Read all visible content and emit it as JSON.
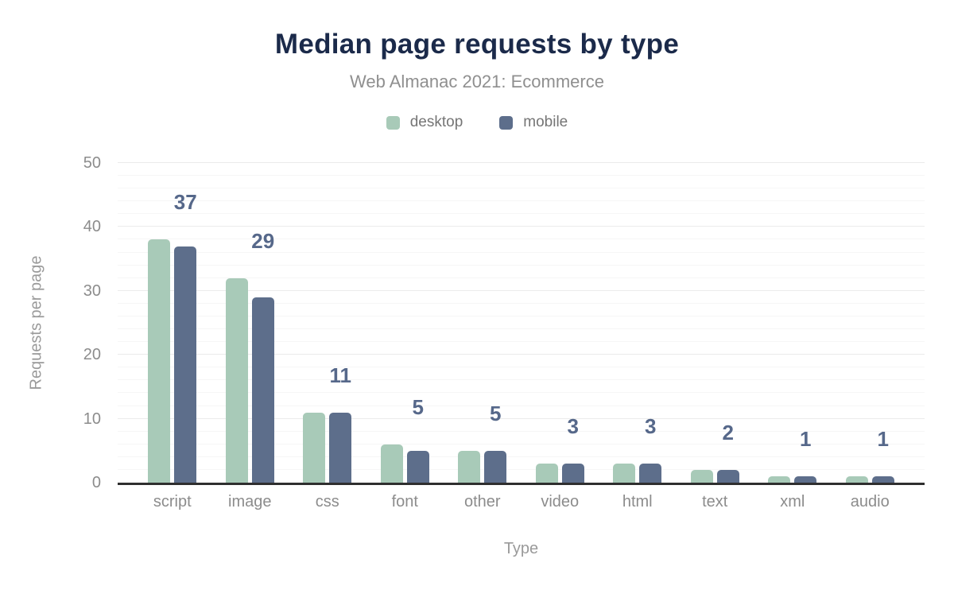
{
  "header": {
    "title": "Median page requests by type",
    "subtitle": "Web Almanac 2021: Ecommerce"
  },
  "legend": [
    {
      "label": "desktop",
      "color": "#a8cab8"
    },
    {
      "label": "mobile",
      "color": "#5d6e8b"
    }
  ],
  "chart_data": {
    "type": "bar",
    "title": "Median page requests by type",
    "subtitle": "Web Almanac 2021: Ecommerce",
    "categories": [
      "script",
      "image",
      "css",
      "font",
      "other",
      "video",
      "html",
      "text",
      "xml",
      "audio"
    ],
    "series": [
      {
        "name": "desktop",
        "color": "#a8cab8",
        "values": [
          38,
          32,
          11,
          6,
          5,
          3,
          3,
          2,
          1,
          1
        ]
      },
      {
        "name": "mobile",
        "color": "#5d6e8b",
        "values": [
          37,
          29,
          11,
          5,
          5,
          3,
          3,
          2,
          1,
          1
        ]
      }
    ],
    "data_labels": [
      37,
      29,
      11,
      5,
      5,
      3,
      3,
      2,
      1,
      1
    ],
    "xlabel": "Type",
    "ylabel": "Requests per page",
    "ylim": [
      0,
      50
    ],
    "yticks": [
      0,
      10,
      20,
      30,
      40,
      50
    ],
    "minor_grid_step": 2,
    "grid": true,
    "legend_position": "top"
  },
  "colors": {
    "title": "#1b2a4a",
    "subtitle": "#8f8f8f",
    "legend_text": "#757575",
    "axis_text": "#8c8c8c",
    "axis_title": "#9a9a9a",
    "data_label": "#56688a",
    "axis_line": "#2f2f2f",
    "grid_major": "#ebebeb",
    "grid_minor": "#f6f6f6",
    "background": "#ffffff"
  }
}
